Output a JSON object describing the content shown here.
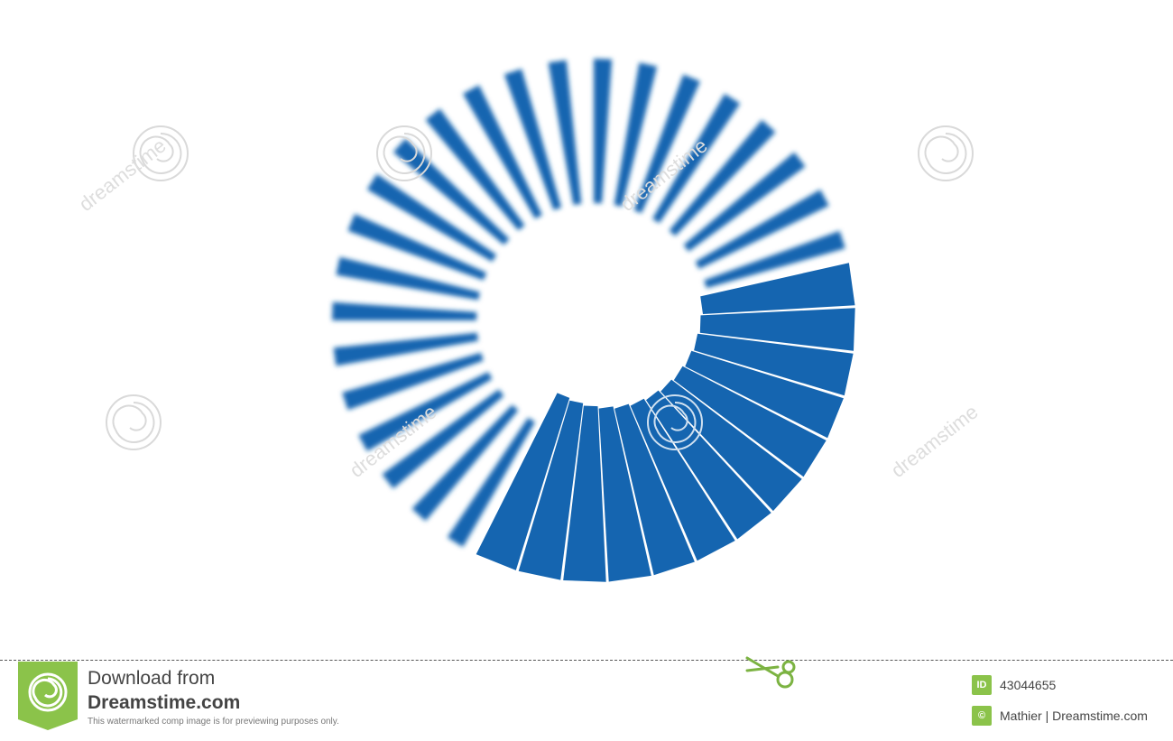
{
  "spinner": {
    "icon": "circular-loading-spinner-icon",
    "color": "#1565b0",
    "segment_count": 36,
    "highlighted_segments": 13
  },
  "watermark": {
    "text": "dreamstime",
    "icon": "dreamstime-spiral-logo-icon"
  },
  "footer": {
    "download_label": "Download from",
    "site_name": "Dreamstime.com",
    "preview_note": "This watermarked comp image is for previewing purposes only.",
    "id_badge": "ID",
    "image_id": "43044655",
    "credit_badge": "©",
    "credit": "Mathier | Dreamstime.com",
    "brand_color": "#8bc34a",
    "scissors_icon": "scissors-icon"
  }
}
